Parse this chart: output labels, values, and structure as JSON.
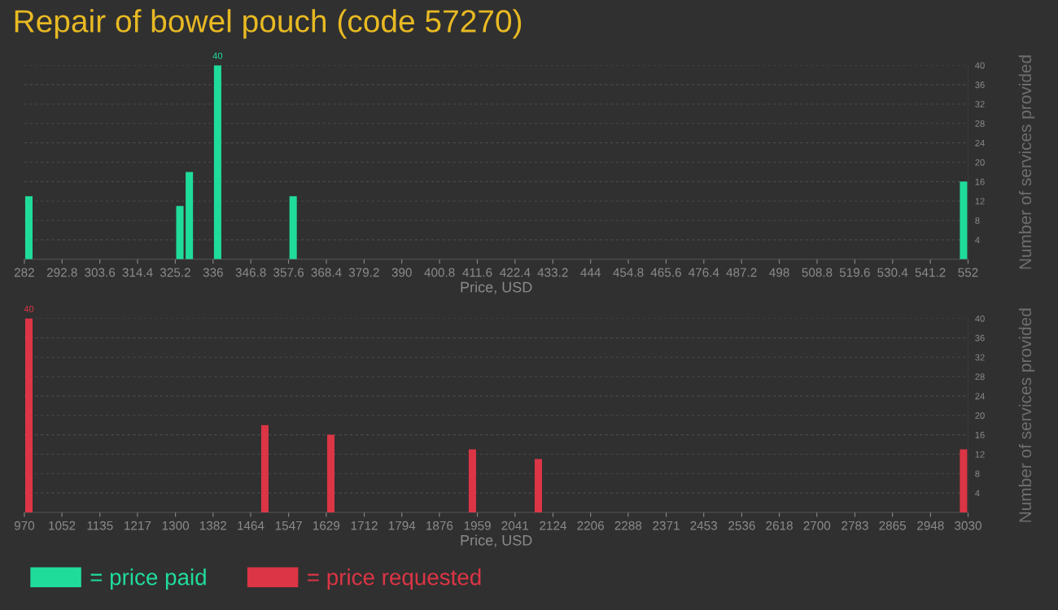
{
  "chart_data": [
    {
      "type": "bar",
      "title": "Repair of bowel pouch (code 57270)",
      "xlabel": "Price, USD",
      "ylabel": "Number of services provided",
      "x": [
        283.3,
        326.5,
        329.2,
        337.3,
        358.9,
        550.7
      ],
      "series": [
        {
          "name": "= price paid",
          "color": "#20dc9a",
          "values": [
            13,
            11,
            18,
            40,
            13,
            16
          ],
          "value_labels": [
            null,
            null,
            null,
            "40",
            null,
            null
          ]
        }
      ],
      "xlim": [
        282,
        552
      ],
      "xticks": [
        282,
        292.8,
        303.6,
        314.4,
        325.2,
        336,
        346.8,
        357.6,
        368.4,
        379.2,
        390,
        400.8,
        411.6,
        422.4,
        433.2,
        444,
        454.8,
        465.6,
        476.4,
        487.2,
        498,
        508.8,
        519.6,
        530.4,
        541.2,
        552
      ],
      "ylim": [
        0,
        40
      ],
      "yticks": [
        4,
        8,
        12,
        16,
        20,
        24,
        28,
        32,
        36,
        40
      ],
      "grid": "y",
      "legend": "bottom left"
    },
    {
      "type": "bar",
      "xlabel": "Price, USD",
      "ylabel": "Number of services provided",
      "x": [
        980,
        1495,
        1639,
        1948,
        2092,
        3020
      ],
      "series": [
        {
          "name": "= price requested",
          "color": "#dc3545",
          "values": [
            40,
            18,
            16,
            13,
            11,
            13
          ],
          "value_labels": [
            "40",
            null,
            null,
            null,
            null,
            null
          ]
        }
      ],
      "xlim": [
        970,
        3030
      ],
      "xticks": [
        970,
        1052,
        1135,
        1217,
        1300,
        1382,
        1464,
        1547,
        1629,
        1712,
        1794,
        1876,
        1959,
        2041,
        2124,
        2206,
        2288,
        2371,
        2453,
        2536,
        2618,
        2700,
        2783,
        2865,
        2948,
        3030
      ],
      "ylim": [
        0,
        40
      ],
      "yticks": [
        4,
        8,
        12,
        16,
        20,
        24,
        28,
        32,
        36,
        40
      ],
      "grid": "y",
      "legend": "bottom left"
    }
  ]
}
